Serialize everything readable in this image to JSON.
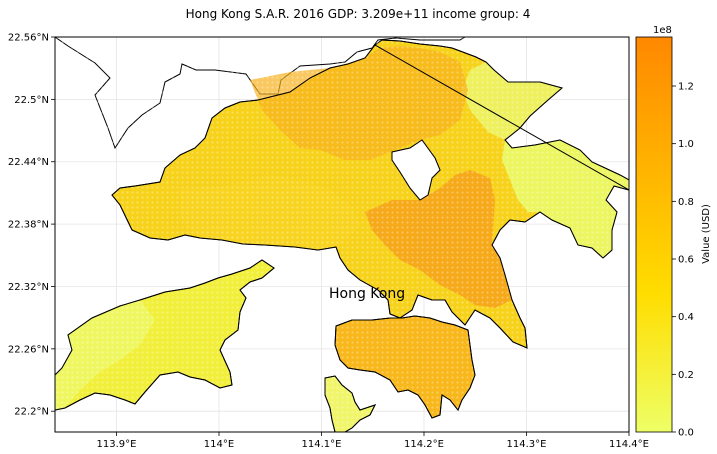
{
  "title": "Hong Kong S.A.R. 2016 GDP: 3.209e+11 income group: 4",
  "place_label": "Hong Kong",
  "lat_ticks": [
    {
      "value": 22.56,
      "label": "22.56°N"
    },
    {
      "value": 22.5,
      "label": "22.5°N"
    },
    {
      "value": 22.44,
      "label": "22.44°N"
    },
    {
      "value": 22.38,
      "label": "22.38°N"
    },
    {
      "value": 22.32,
      "label": "22.32°N"
    },
    {
      "value": 22.26,
      "label": "22.26°N"
    },
    {
      "value": 22.2,
      "label": "22.2°N"
    }
  ],
  "lon_ticks": [
    {
      "value": 113.9,
      "label": "113.9°E"
    },
    {
      "value": 114.0,
      "label": "114°E"
    },
    {
      "value": 114.1,
      "label": "114.1°E"
    },
    {
      "value": 114.2,
      "label": "114.2°E"
    },
    {
      "value": 114.3,
      "label": "114.3°E"
    },
    {
      "value": 114.4,
      "label": "114.4°E"
    }
  ],
  "colorbar": {
    "label": "Value (USD)",
    "multiplier": "1e8",
    "ticks": [
      {
        "value": 0.0,
        "label": "0.0"
      },
      {
        "value": 0.2,
        "label": "0.2"
      },
      {
        "value": 0.4,
        "label": "0.4"
      },
      {
        "value": 0.6,
        "label": "0.6"
      },
      {
        "value": 0.8,
        "label": "0.8"
      },
      {
        "value": 1.0,
        "label": "1.0"
      },
      {
        "value": 1.2,
        "label": "1.2"
      }
    ],
    "max": 1.37,
    "colors": [
      "#eeff66",
      "#ffdd00",
      "#ff8800"
    ]
  },
  "map": {
    "lon_range": [
      113.84,
      114.4
    ],
    "lat_range": [
      22.18,
      22.56
    ],
    "grid": true,
    "coast_color": "#000000"
  }
}
